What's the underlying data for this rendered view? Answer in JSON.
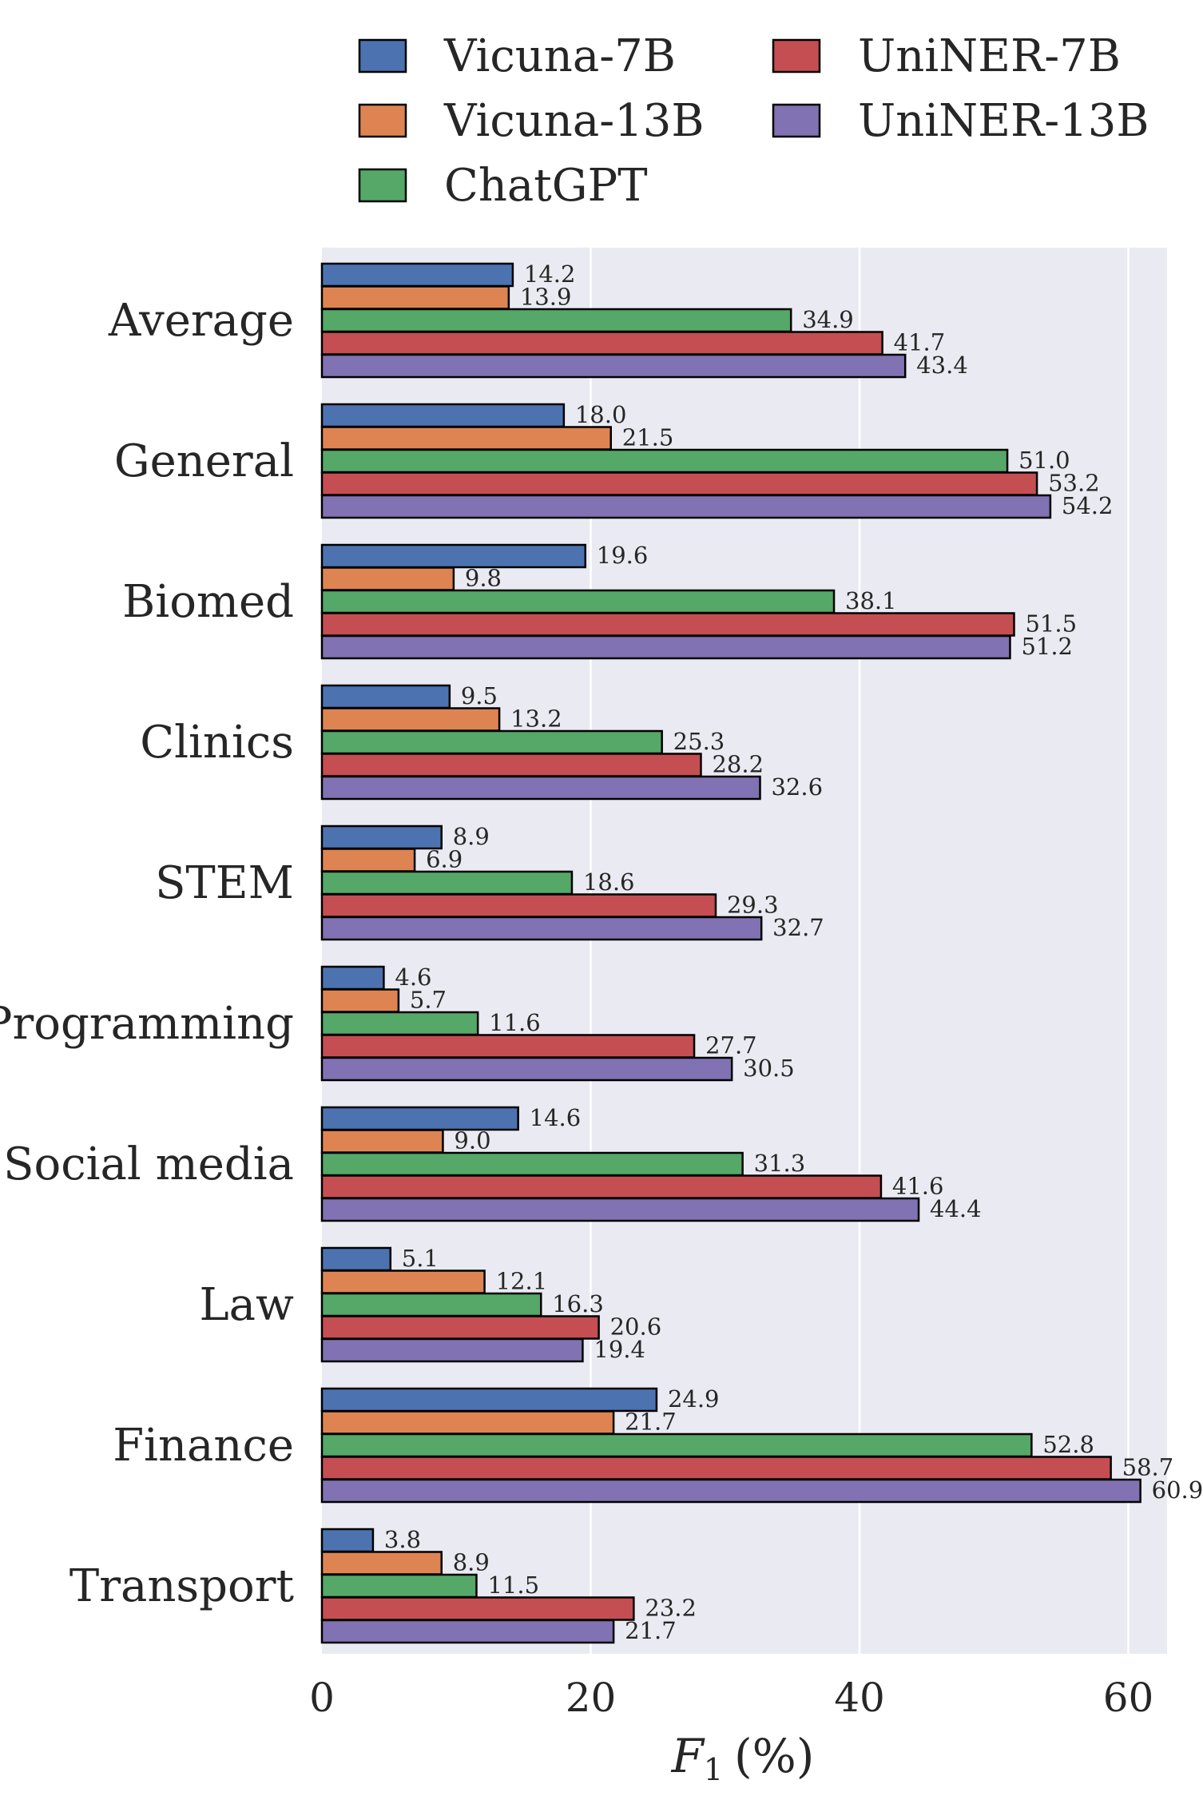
{
  "chart_data": {
    "type": "bar",
    "orientation": "horizontal",
    "xlabel_main": "F",
    "xlabel_sub": "1",
    "xlabel_unit": "(%)",
    "xlim": [
      0,
      63
    ],
    "xticks": [
      0,
      20,
      40,
      60
    ],
    "xtick_labels": [
      "0",
      "20",
      "40",
      "60"
    ],
    "grid": true,
    "legend_position": "top",
    "categories": [
      "Average",
      "General",
      "Biomed",
      "Clinics",
      "STEM",
      "Programming",
      "Social media",
      "Law",
      "Finance",
      "Transport"
    ],
    "series": [
      {
        "name": "Vicuna-7B",
        "color": "#4c72b0",
        "values": [
          14.2,
          18.0,
          19.6,
          9.5,
          8.9,
          4.6,
          14.6,
          5.1,
          24.9,
          3.8
        ],
        "labels": [
          "14.2",
          "18.0",
          "19.6",
          "9.5",
          "8.9",
          "4.6",
          "14.6",
          "5.1",
          "24.9",
          "3.8"
        ]
      },
      {
        "name": "Vicuna-13B",
        "color": "#dd8452",
        "values": [
          13.9,
          21.5,
          9.8,
          13.2,
          6.9,
          5.7,
          9.0,
          12.1,
          21.7,
          8.9
        ],
        "labels": [
          "13.9",
          "21.5",
          "9.8",
          "13.2",
          "6.9",
          "5.7",
          "9.0",
          "12.1",
          "21.7",
          "8.9"
        ]
      },
      {
        "name": "ChatGPT",
        "color": "#55a868",
        "values": [
          34.9,
          51.0,
          38.1,
          25.3,
          18.6,
          11.6,
          31.3,
          16.3,
          52.8,
          11.5
        ],
        "labels": [
          "34.9",
          "51.0",
          "38.1",
          "25.3",
          "18.6",
          "11.6",
          "31.3",
          "16.3",
          "52.8",
          "11.5"
        ]
      },
      {
        "name": "UniNER-7B",
        "color": "#c44e52",
        "values": [
          41.7,
          53.2,
          51.5,
          28.2,
          29.3,
          27.7,
          41.6,
          20.6,
          58.7,
          23.2
        ],
        "labels": [
          "41.7",
          "53.2",
          "51.5",
          "28.2",
          "29.3",
          "27.7",
          "41.6",
          "20.6",
          "58.7",
          "23.2"
        ]
      },
      {
        "name": "UniNER-13B",
        "color": "#8172b3",
        "values": [
          43.4,
          54.2,
          51.2,
          32.6,
          32.7,
          30.5,
          44.4,
          19.4,
          60.9,
          21.7
        ],
        "labels": [
          "43.4",
          "54.2",
          "51.2",
          "32.6",
          "32.7",
          "30.5",
          "44.4",
          "19.4",
          "60.9",
          "21.7"
        ]
      }
    ],
    "colors": {
      "plot_background": "#eaeaf2",
      "grid": "#ffffff",
      "bar_edge": "#000000",
      "text": "#262626"
    }
  }
}
